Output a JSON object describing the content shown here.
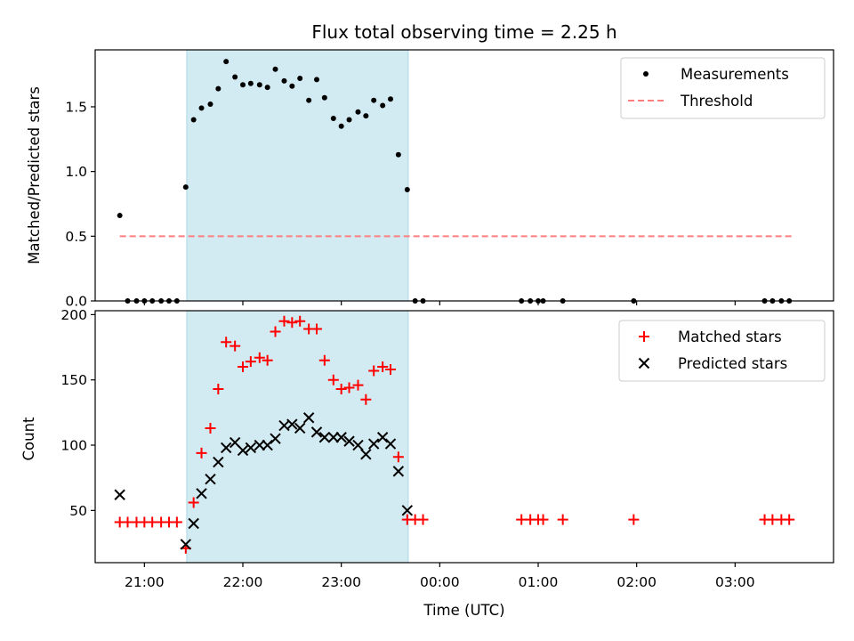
{
  "title": "Flux total observing time = 2.25 h",
  "colors": {
    "shade": "#add8e6",
    "measurement": "#000000",
    "threshold": "#ff7f7f",
    "matched": "#ff0000",
    "predicted": "#000000"
  },
  "chart_data": [
    {
      "type": "scatter",
      "ylabel": "Matched/Predicted stars",
      "xlim": [
        20.5,
        4.0
      ],
      "ylim": [
        0,
        1.94
      ],
      "yticks": [
        0.0,
        0.5,
        1.0,
        1.5
      ],
      "ytick_labels": [
        "0.0",
        "0.5",
        "1.0",
        "1.5"
      ],
      "shaded_span": [
        21.43,
        23.68
      ],
      "threshold": {
        "name": "Threshold",
        "value": 0.5,
        "x_range": [
          20.75,
          3.6
        ]
      },
      "legend": {
        "location": "top-right",
        "entries": [
          "Measurements",
          "Threshold"
        ]
      },
      "series": [
        {
          "name": "Measurements",
          "x": [
            20.75,
            20.83,
            20.92,
            21.0,
            21.08,
            21.17,
            21.25,
            21.33,
            21.42,
            21.5,
            21.58,
            21.67,
            21.75,
            21.83,
            21.92,
            22.0,
            22.08,
            22.17,
            22.25,
            22.33,
            22.42,
            22.5,
            22.58,
            22.67,
            22.75,
            22.83,
            22.92,
            23.0,
            23.08,
            23.17,
            23.25,
            23.33,
            23.42,
            23.5,
            23.58,
            23.67,
            23.75,
            23.83,
            0.83,
            0.92,
            1.0,
            1.05,
            1.25,
            1.97,
            3.3,
            3.38,
            3.47,
            3.55
          ],
          "y": [
            0.66,
            0.0,
            0.0,
            0.0,
            0.0,
            0.0,
            0.0,
            0.0,
            0.88,
            1.4,
            1.49,
            1.52,
            1.64,
            1.85,
            1.73,
            1.67,
            1.68,
            1.67,
            1.65,
            1.79,
            1.7,
            1.66,
            1.72,
            1.55,
            1.71,
            1.57,
            1.41,
            1.35,
            1.4,
            1.46,
            1.43,
            1.55,
            1.51,
            1.56,
            1.13,
            0.86,
            0.0,
            0.0,
            0.0,
            0.0,
            0.0,
            0.0,
            0.0,
            0.0,
            0.0,
            0.0,
            0.0,
            0.0
          ]
        }
      ]
    },
    {
      "type": "scatter",
      "title": "Flux total observing time = 2.25 h",
      "xlabel": "Time (UTC)",
      "ylabel": "Count",
      "xlim": [
        20.5,
        4.0
      ],
      "ylim": [
        10,
        203
      ],
      "xticks": [
        21,
        22,
        23,
        0,
        1,
        2,
        3
      ],
      "xtick_labels": [
        "21:00",
        "22:00",
        "23:00",
        "00:00",
        "01:00",
        "02:00",
        "03:00"
      ],
      "yticks": [
        50,
        100,
        150,
        200
      ],
      "ytick_labels": [
        "50",
        "100",
        "150",
        "200"
      ],
      "shaded_span": [
        21.43,
        23.68
      ],
      "legend": {
        "location": "top-right",
        "entries": [
          "Matched stars",
          "Predicted stars"
        ]
      },
      "series": [
        {
          "name": "Matched stars",
          "marker": "+",
          "x": [
            20.75,
            20.83,
            20.92,
            21.0,
            21.08,
            21.17,
            21.25,
            21.33,
            21.42,
            21.5,
            21.58,
            21.67,
            21.75,
            21.83,
            21.92,
            22.0,
            22.08,
            22.17,
            22.25,
            22.33,
            22.42,
            22.5,
            22.58,
            22.67,
            22.75,
            22.83,
            22.92,
            23.0,
            23.08,
            23.17,
            23.25,
            23.33,
            23.42,
            23.5,
            23.58,
            23.67,
            23.75,
            23.83,
            0.83,
            0.92,
            1.0,
            1.05,
            1.25,
            1.97,
            3.3,
            3.38,
            3.47,
            3.55
          ],
          "y": [
            41,
            41,
            41,
            41,
            41,
            41,
            41,
            41,
            21,
            56,
            94,
            113,
            143,
            179,
            176,
            160,
            164,
            167,
            165,
            187,
            195,
            194,
            195,
            189,
            189,
            165,
            150,
            143,
            144,
            146,
            135,
            157,
            160,
            158,
            91,
            43,
            43,
            43,
            43,
            43,
            43,
            43,
            43,
            43,
            43,
            43,
            43,
            43
          ]
        },
        {
          "name": "Predicted stars",
          "marker": "x",
          "x": [
            20.75,
            21.42,
            21.5,
            21.58,
            21.67,
            21.75,
            21.83,
            21.92,
            22.0,
            22.08,
            22.17,
            22.25,
            22.33,
            22.42,
            22.5,
            22.58,
            22.67,
            22.75,
            22.83,
            22.92,
            23.0,
            23.08,
            23.17,
            23.25,
            23.33,
            23.42,
            23.5,
            23.58,
            23.67
          ],
          "y": [
            62,
            24,
            40,
            63,
            74,
            87,
            98,
            102,
            96,
            98,
            100,
            100,
            105,
            115,
            116,
            113,
            121,
            110,
            106,
            106,
            106,
            103,
            100,
            93,
            101,
            106,
            101,
            80,
            50
          ]
        }
      ]
    }
  ]
}
